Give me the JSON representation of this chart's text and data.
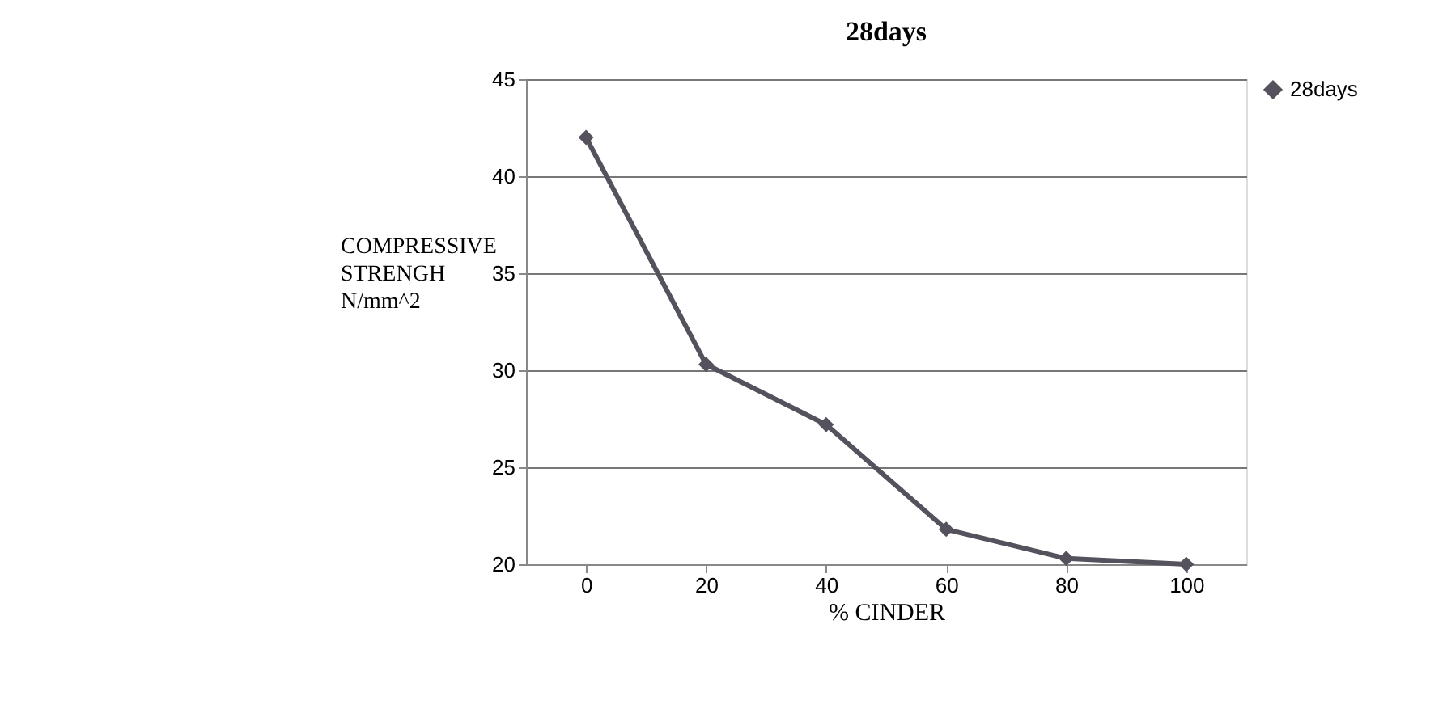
{
  "chart_data": {
    "type": "line",
    "title": "28days",
    "xlabel": "% CINDER",
    "ylabel": "COMPRESSIVE STRENGH N/mm^2",
    "categories": [
      "0",
      "20",
      "40",
      "60",
      "80",
      "100"
    ],
    "series": [
      {
        "name": "28days",
        "color": "#55525e",
        "values": [
          42,
          30.3,
          27.2,
          21.8,
          20.3,
          20
        ]
      }
    ],
    "ylim": [
      20,
      45
    ],
    "yticks": [
      20,
      25,
      30,
      35,
      40,
      45
    ],
    "grid": "y",
    "legend": "right",
    "marker": "diamond",
    "line_style": "solid"
  }
}
